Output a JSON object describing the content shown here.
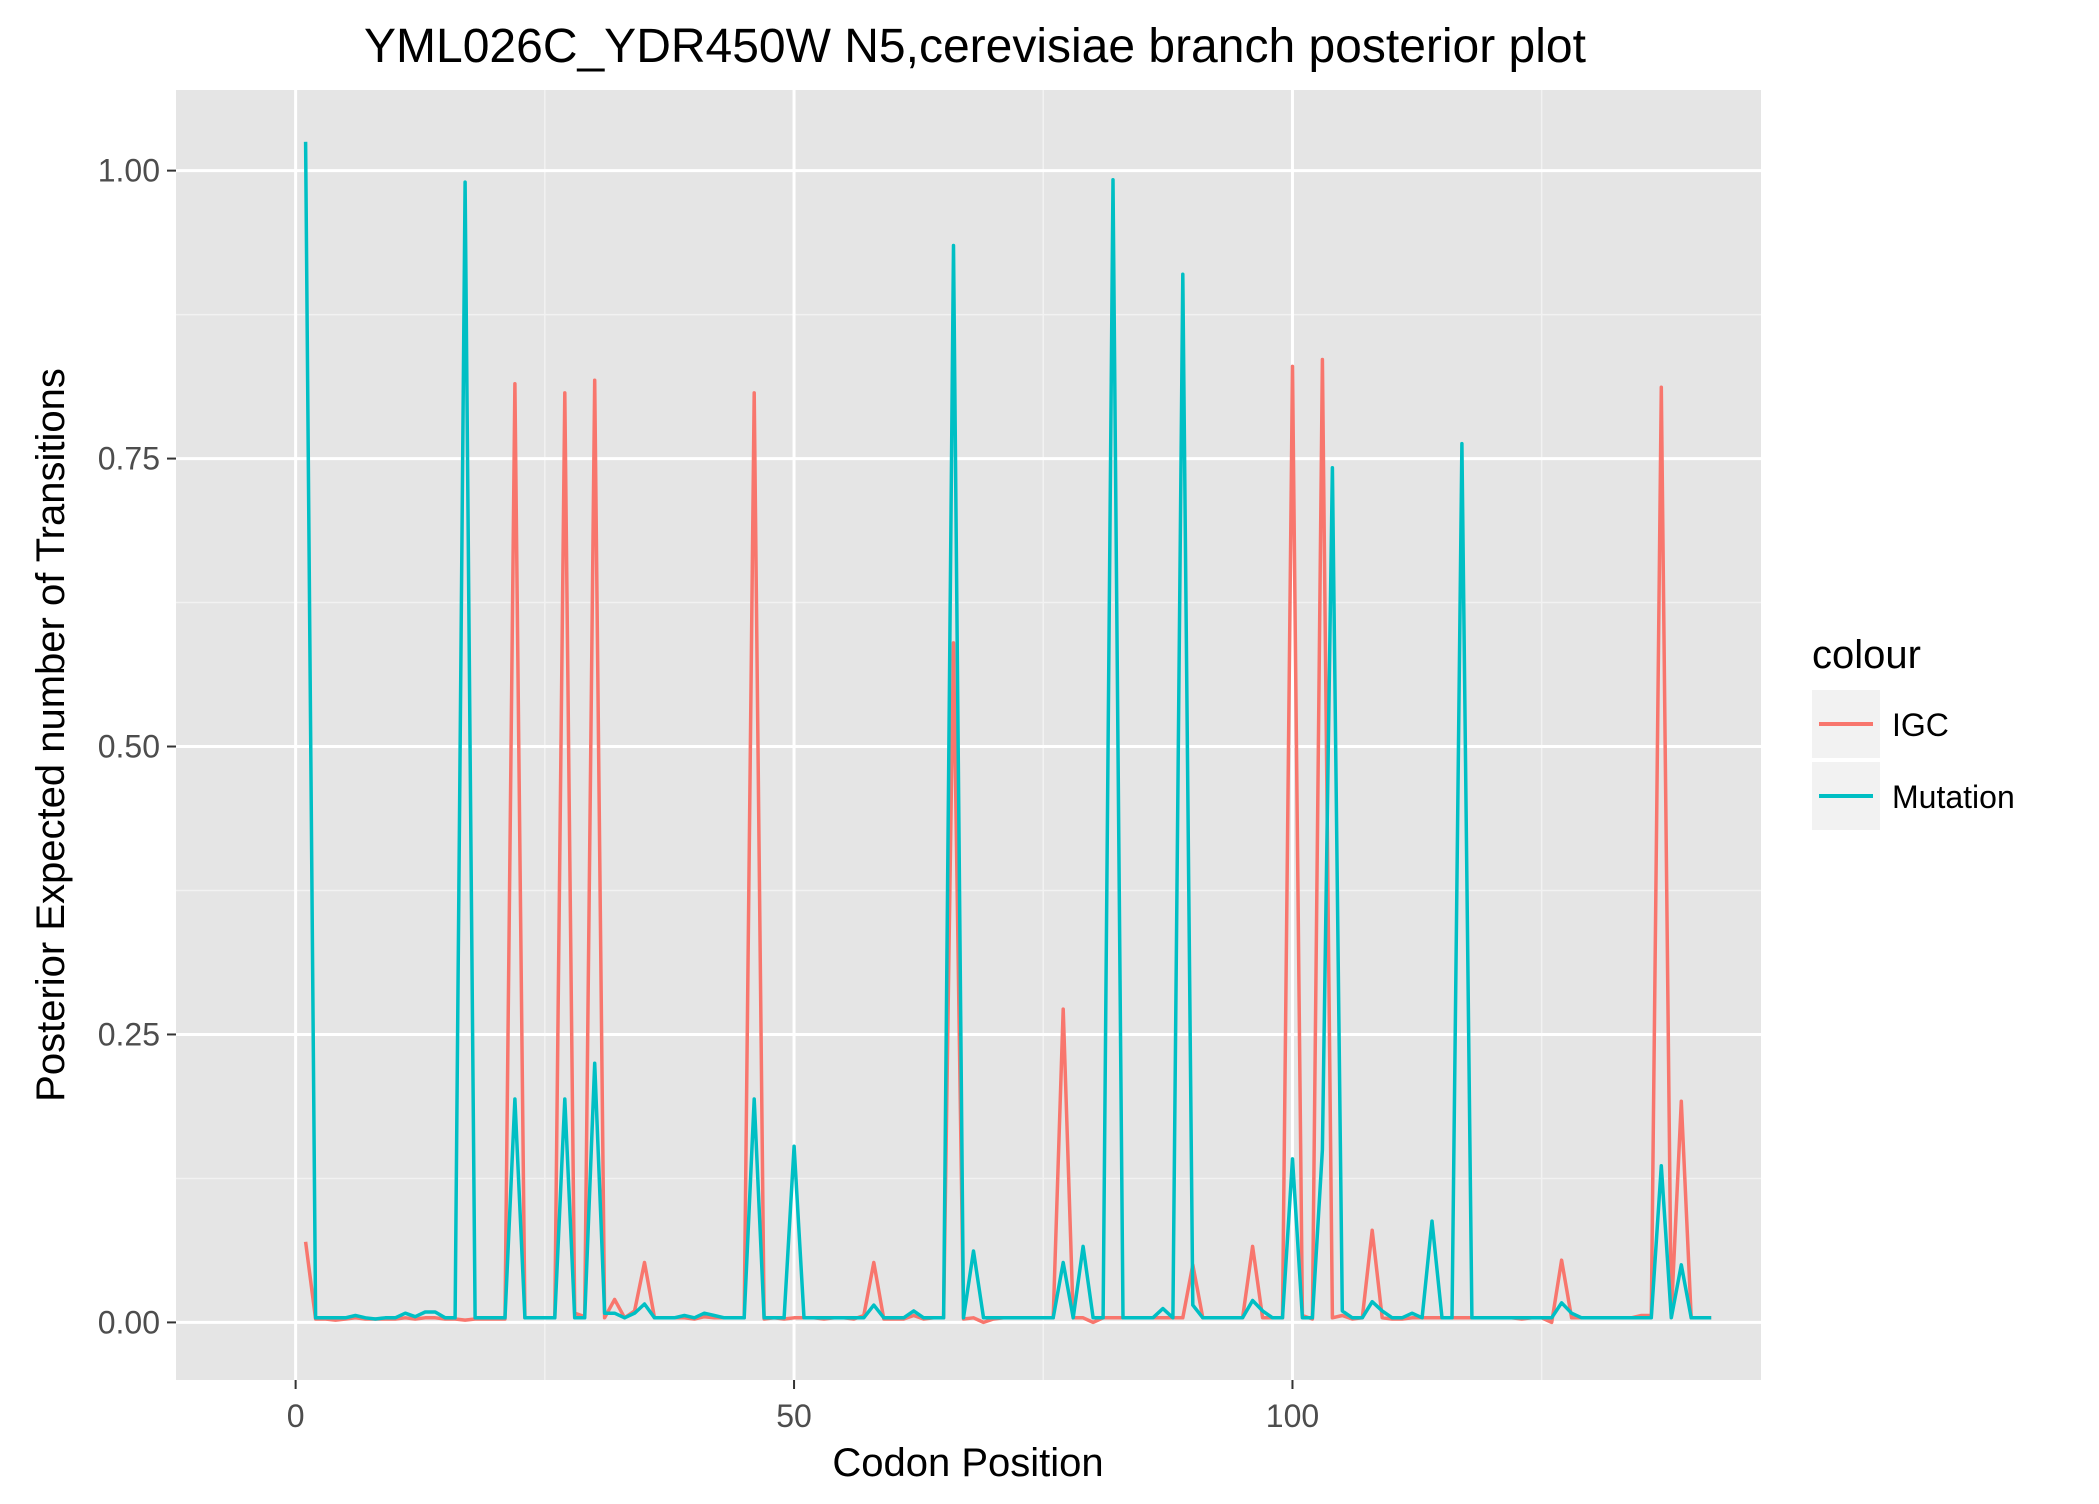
{
  "chart_data": {
    "type": "line",
    "title": "YML026C_YDR450W N5,cerevisiae branch posterior plot",
    "xlabel": "Codon Position",
    "ylabel": "Posterior Expected number of Transitions",
    "xlim": [
      -12,
      147
    ],
    "ylim": [
      -0.05,
      1.07
    ],
    "x_ticks": [
      0,
      50,
      100
    ],
    "x_tick_labels": [
      "0",
      "50",
      "100"
    ],
    "y_ticks": [
      0,
      0.25,
      0.5,
      0.75,
      1.0
    ],
    "y_tick_labels": [
      "0.00",
      "0.25",
      "0.50",
      "0.75",
      "1.00"
    ],
    "x_minor_ticks": [
      25,
      75,
      125
    ],
    "y_minor_ticks": [
      0.125,
      0.375,
      0.625,
      0.875
    ],
    "grid": true,
    "panel_background": "#e5e5e5",
    "legend": {
      "title": "colour",
      "position": "right",
      "entries": [
        "IGC",
        "Mutation"
      ]
    },
    "series": [
      {
        "name": "IGC",
        "color": "#f8766d",
        "points": [
          [
            1,
            0.07
          ],
          [
            2,
            0.003
          ],
          [
            3,
            0.003
          ],
          [
            4,
            0.002
          ],
          [
            5,
            0.003
          ],
          [
            6,
            0.004
          ],
          [
            7,
            0.003
          ],
          [
            8,
            0.003
          ],
          [
            9,
            0.003
          ],
          [
            10,
            0.003
          ],
          [
            11,
            0.004
          ],
          [
            12,
            0.003
          ],
          [
            13,
            0.004
          ],
          [
            14,
            0.004
          ],
          [
            15,
            0.003
          ],
          [
            16,
            0.003
          ],
          [
            17,
            0.002
          ],
          [
            18,
            0.003
          ],
          [
            19,
            0.003
          ],
          [
            20,
            0.003
          ],
          [
            21,
            0.003
          ],
          [
            22,
            0.815
          ],
          [
            23,
            0.004
          ],
          [
            24,
            0.004
          ],
          [
            25,
            0.004
          ],
          [
            26,
            0.004
          ],
          [
            27,
            0.807
          ],
          [
            28,
            0.008
          ],
          [
            29,
            0.005
          ],
          [
            30,
            0.818
          ],
          [
            31,
            0.004
          ],
          [
            32,
            0.02
          ],
          [
            33,
            0.004
          ],
          [
            34,
            0.01
          ],
          [
            35,
            0.052
          ],
          [
            36,
            0.004
          ],
          [
            37,
            0.004
          ],
          [
            38,
            0.004
          ],
          [
            39,
            0.004
          ],
          [
            40,
            0.003
          ],
          [
            41,
            0.005
          ],
          [
            42,
            0.004
          ],
          [
            43,
            0.004
          ],
          [
            44,
            0.004
          ],
          [
            45,
            0.004
          ],
          [
            46,
            0.807
          ],
          [
            47,
            0.003
          ],
          [
            48,
            0.004
          ],
          [
            49,
            0.003
          ],
          [
            50,
            0.004
          ],
          [
            51,
            0.004
          ],
          [
            52,
            0.004
          ],
          [
            53,
            0.003
          ],
          [
            54,
            0.004
          ],
          [
            55,
            0.004
          ],
          [
            56,
            0.003
          ],
          [
            57,
            0.006
          ],
          [
            58,
            0.052
          ],
          [
            59,
            0.003
          ],
          [
            60,
            0.003
          ],
          [
            61,
            0.003
          ],
          [
            62,
            0.006
          ],
          [
            63,
            0.003
          ],
          [
            64,
            0.004
          ],
          [
            65,
            0.004
          ],
          [
            66,
            0.59
          ],
          [
            67,
            0.003
          ],
          [
            68,
            0.004
          ],
          [
            69,
            0.0
          ],
          [
            70,
            0.003
          ],
          [
            71,
            0.004
          ],
          [
            72,
            0.004
          ],
          [
            73,
            0.004
          ],
          [
            74,
            0.004
          ],
          [
            75,
            0.004
          ],
          [
            76,
            0.004
          ],
          [
            77,
            0.272
          ],
          [
            78,
            0.004
          ],
          [
            79,
            0.004
          ],
          [
            80,
            0.0
          ],
          [
            81,
            0.004
          ],
          [
            82,
            0.004
          ],
          [
            83,
            0.004
          ],
          [
            84,
            0.004
          ],
          [
            85,
            0.004
          ],
          [
            86,
            0.004
          ],
          [
            87,
            0.004
          ],
          [
            88,
            0.004
          ],
          [
            89,
            0.004
          ],
          [
            90,
            0.05
          ],
          [
            91,
            0.004
          ],
          [
            92,
            0.004
          ],
          [
            93,
            0.004
          ],
          [
            94,
            0.004
          ],
          [
            95,
            0.004
          ],
          [
            96,
            0.066
          ],
          [
            97,
            0.004
          ],
          [
            98,
            0.004
          ],
          [
            99,
            0.004
          ],
          [
            100,
            0.83
          ],
          [
            101,
            0.006
          ],
          [
            102,
            0.003
          ],
          [
            103,
            0.836
          ],
          [
            104,
            0.004
          ],
          [
            105,
            0.006
          ],
          [
            106,
            0.003
          ],
          [
            107,
            0.004
          ],
          [
            108,
            0.08
          ],
          [
            109,
            0.004
          ],
          [
            110,
            0.003
          ],
          [
            111,
            0.003
          ],
          [
            112,
            0.004
          ],
          [
            113,
            0.004
          ],
          [
            114,
            0.004
          ],
          [
            115,
            0.004
          ],
          [
            116,
            0.004
          ],
          [
            117,
            0.004
          ],
          [
            118,
            0.004
          ],
          [
            119,
            0.004
          ],
          [
            120,
            0.004
          ],
          [
            121,
            0.004
          ],
          [
            122,
            0.004
          ],
          [
            123,
            0.003
          ],
          [
            124,
            0.004
          ],
          [
            125,
            0.004
          ],
          [
            126,
            0.0
          ],
          [
            127,
            0.054
          ],
          [
            128,
            0.004
          ],
          [
            129,
            0.004
          ],
          [
            130,
            0.004
          ],
          [
            131,
            0.004
          ],
          [
            132,
            0.004
          ],
          [
            133,
            0.004
          ],
          [
            134,
            0.004
          ],
          [
            135,
            0.006
          ],
          [
            136,
            0.006
          ],
          [
            137,
            0.812
          ],
          [
            138,
            0.006
          ],
          [
            139,
            0.192
          ],
          [
            140,
            0.004
          ],
          [
            141,
            0.004
          ],
          [
            142,
            0.004
          ]
        ]
      },
      {
        "name": "Mutation",
        "color": "#00bfc4",
        "points": [
          [
            1,
            1.025
          ],
          [
            2,
            0.004
          ],
          [
            3,
            0.004
          ],
          [
            4,
            0.004
          ],
          [
            5,
            0.004
          ],
          [
            6,
            0.006
          ],
          [
            7,
            0.004
          ],
          [
            8,
            0.003
          ],
          [
            9,
            0.004
          ],
          [
            10,
            0.004
          ],
          [
            11,
            0.008
          ],
          [
            12,
            0.005
          ],
          [
            13,
            0.009
          ],
          [
            14,
            0.009
          ],
          [
            15,
            0.004
          ],
          [
            16,
            0.004
          ],
          [
            17,
            0.99
          ],
          [
            18,
            0.004
          ],
          [
            19,
            0.004
          ],
          [
            20,
            0.004
          ],
          [
            21,
            0.004
          ],
          [
            22,
            0.194
          ],
          [
            23,
            0.004
          ],
          [
            24,
            0.004
          ],
          [
            25,
            0.004
          ],
          [
            26,
            0.004
          ],
          [
            27,
            0.194
          ],
          [
            28,
            0.004
          ],
          [
            29,
            0.004
          ],
          [
            30,
            0.225
          ],
          [
            31,
            0.008
          ],
          [
            32,
            0.008
          ],
          [
            33,
            0.004
          ],
          [
            34,
            0.008
          ],
          [
            35,
            0.016
          ],
          [
            36,
            0.004
          ],
          [
            37,
            0.004
          ],
          [
            38,
            0.004
          ],
          [
            39,
            0.006
          ],
          [
            40,
            0.004
          ],
          [
            41,
            0.008
          ],
          [
            42,
            0.006
          ],
          [
            43,
            0.004
          ],
          [
            44,
            0.004
          ],
          [
            45,
            0.004
          ],
          [
            46,
            0.194
          ],
          [
            47,
            0.004
          ],
          [
            48,
            0.004
          ],
          [
            49,
            0.004
          ],
          [
            50,
            0.153
          ],
          [
            51,
            0.004
          ],
          [
            52,
            0.004
          ],
          [
            53,
            0.004
          ],
          [
            54,
            0.004
          ],
          [
            55,
            0.004
          ],
          [
            56,
            0.004
          ],
          [
            57,
            0.004
          ],
          [
            58,
            0.015
          ],
          [
            59,
            0.004
          ],
          [
            60,
            0.004
          ],
          [
            61,
            0.004
          ],
          [
            62,
            0.01
          ],
          [
            63,
            0.004
          ],
          [
            64,
            0.004
          ],
          [
            65,
            0.004
          ],
          [
            66,
            0.935
          ],
          [
            67,
            0.004
          ],
          [
            68,
            0.062
          ],
          [
            69,
            0.004
          ],
          [
            70,
            0.004
          ],
          [
            71,
            0.004
          ],
          [
            72,
            0.004
          ],
          [
            73,
            0.004
          ],
          [
            74,
            0.004
          ],
          [
            75,
            0.004
          ],
          [
            76,
            0.004
          ],
          [
            77,
            0.052
          ],
          [
            78,
            0.004
          ],
          [
            79,
            0.066
          ],
          [
            80,
            0.004
          ],
          [
            81,
            0.004
          ],
          [
            82,
            0.992
          ],
          [
            83,
            0.004
          ],
          [
            84,
            0.004
          ],
          [
            85,
            0.004
          ],
          [
            86,
            0.004
          ],
          [
            87,
            0.012
          ],
          [
            88,
            0.004
          ],
          [
            89,
            0.91
          ],
          [
            90,
            0.015
          ],
          [
            91,
            0.004
          ],
          [
            92,
            0.004
          ],
          [
            93,
            0.004
          ],
          [
            94,
            0.004
          ],
          [
            95,
            0.004
          ],
          [
            96,
            0.019
          ],
          [
            97,
            0.01
          ],
          [
            98,
            0.004
          ],
          [
            99,
            0.004
          ],
          [
            100,
            0.142
          ],
          [
            101,
            0.004
          ],
          [
            102,
            0.004
          ],
          [
            103,
            0.15
          ],
          [
            104,
            0.742
          ],
          [
            105,
            0.01
          ],
          [
            106,
            0.004
          ],
          [
            107,
            0.004
          ],
          [
            108,
            0.018
          ],
          [
            109,
            0.01
          ],
          [
            110,
            0.004
          ],
          [
            111,
            0.004
          ],
          [
            112,
            0.008
          ],
          [
            113,
            0.004
          ],
          [
            114,
            0.088
          ],
          [
            115,
            0.004
          ],
          [
            116,
            0.004
          ],
          [
            117,
            0.763
          ],
          [
            118,
            0.004
          ],
          [
            119,
            0.004
          ],
          [
            120,
            0.004
          ],
          [
            121,
            0.004
          ],
          [
            122,
            0.004
          ],
          [
            123,
            0.004
          ],
          [
            124,
            0.004
          ],
          [
            125,
            0.004
          ],
          [
            126,
            0.004
          ],
          [
            127,
            0.017
          ],
          [
            128,
            0.008
          ],
          [
            129,
            0.004
          ],
          [
            130,
            0.004
          ],
          [
            131,
            0.004
          ],
          [
            132,
            0.004
          ],
          [
            133,
            0.004
          ],
          [
            134,
            0.004
          ],
          [
            135,
            0.004
          ],
          [
            136,
            0.004
          ],
          [
            137,
            0.136
          ],
          [
            138,
            0.004
          ],
          [
            139,
            0.05
          ],
          [
            140,
            0.004
          ],
          [
            141,
            0.004
          ],
          [
            142,
            0.004
          ]
        ]
      }
    ]
  }
}
